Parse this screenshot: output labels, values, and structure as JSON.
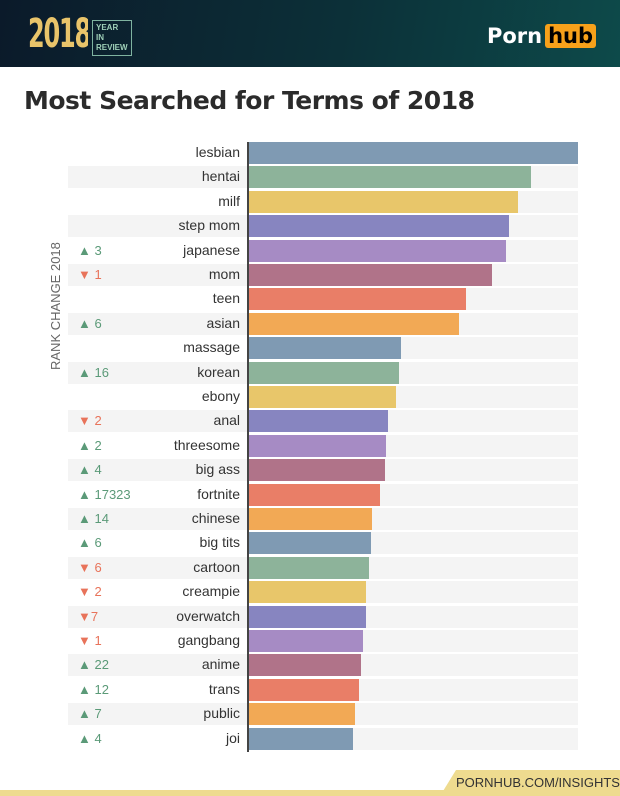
{
  "header": {
    "year": "2018",
    "badge": "YEAR IN REVIEW",
    "logo_left": "Porn",
    "logo_right": "hub"
  },
  "footer": {
    "link": "PORNHUB.COM/INSIGHTS"
  },
  "chart_data": {
    "type": "bar",
    "orientation": "horizontal",
    "title": "Most Searched for Terms of 2018",
    "side_label": "RANK CHANGE 2018",
    "note": "values are relative bar lengths (top term = 100), no axis printed",
    "categories": [
      "lesbian",
      "hentai",
      "milf",
      "step mom",
      "japanese",
      "mom",
      "teen",
      "asian",
      "massage",
      "korean",
      "ebony",
      "anal",
      "threesome",
      "big ass",
      "fortnite",
      "chinese",
      "big tits",
      "cartoon",
      "creampie",
      "overwatch",
      "gangbang",
      "anime",
      "trans",
      "public",
      "joi"
    ],
    "values": [
      100,
      85.8,
      81.8,
      79.1,
      78.2,
      73.9,
      66.1,
      63.9,
      46.4,
      45.8,
      44.8,
      42.4,
      41.8,
      41.5,
      40,
      37.6,
      37.3,
      36.7,
      35.8,
      35.8,
      34.8,
      34.2,
      33.6,
      32.4,
      31.8
    ],
    "rank_change": [
      "",
      "",
      "",
      "",
      "▲ 3",
      "▼ 1",
      "",
      "▲ 6",
      "",
      "▲ 16",
      "",
      "▼ 2",
      "▲ 2",
      "▲ 4",
      "▲ 17323",
      "▲ 14",
      "▲ 6",
      "▼ 6",
      "▼ 2",
      "▼7",
      "▼ 1",
      "▲ 22",
      "▲ 12",
      "▲ 7",
      "▲ 4"
    ],
    "colors": [
      "#7f9ab3",
      "#8db39a",
      "#e8c66a",
      "#8785c0",
      "#a68bc4",
      "#b07389",
      "#e97e67",
      "#f2a955"
    ],
    "change_colors": {
      "up": "#5b9a78",
      "down": "#e8735a"
    }
  }
}
